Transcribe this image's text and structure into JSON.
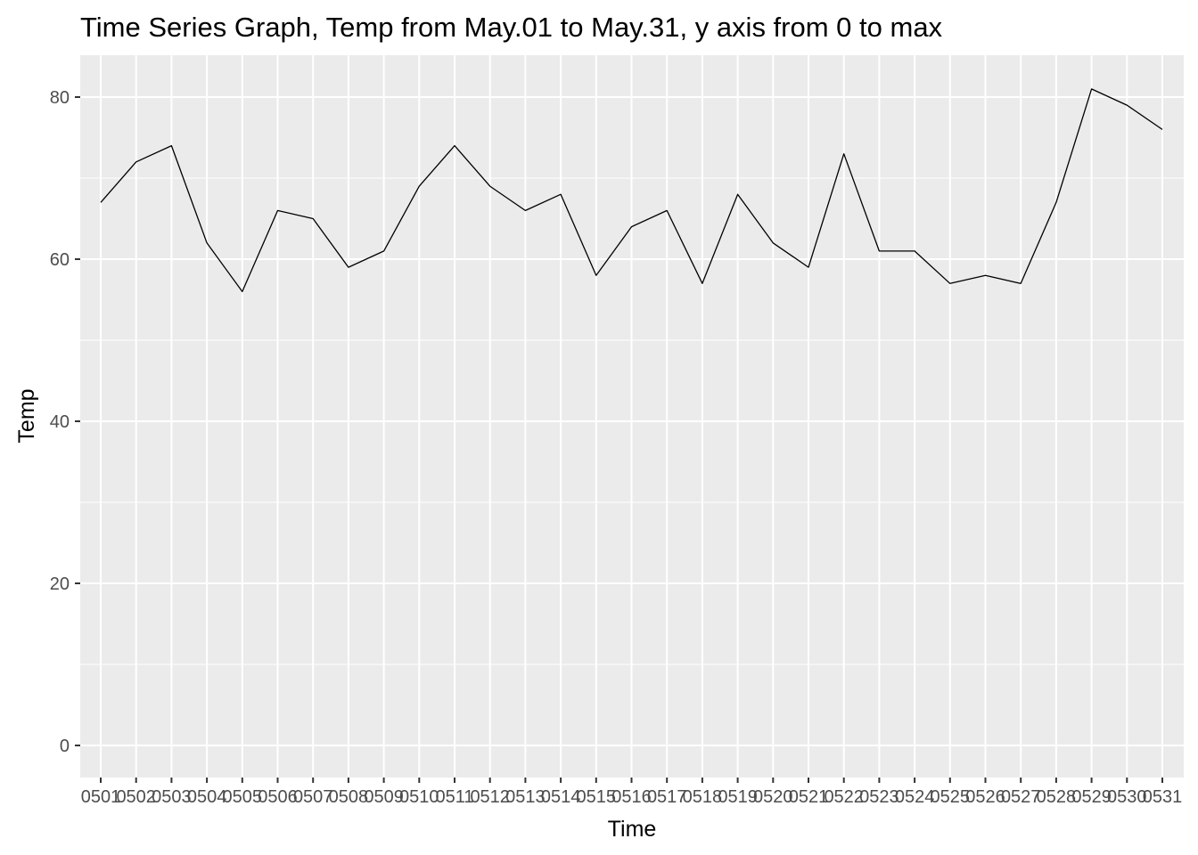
{
  "chart_data": {
    "type": "line",
    "title": "Time Series Graph, Temp from May.01 to May.31, y axis from 0 to max",
    "xlabel": "Time",
    "ylabel": "Temp",
    "categories": [
      "0501",
      "0502",
      "0503",
      "0504",
      "0505",
      "0506",
      "0507",
      "0508",
      "0509",
      "0510",
      "0511",
      "0512",
      "0513",
      "0514",
      "0515",
      "0516",
      "0517",
      "0518",
      "0519",
      "0520",
      "0521",
      "0522",
      "0523",
      "0524",
      "0525",
      "0526",
      "0527",
      "0528",
      "0529",
      "0530",
      "0531"
    ],
    "values": [
      67,
      72,
      74,
      62,
      56,
      66,
      65,
      59,
      61,
      69,
      74,
      69,
      66,
      68,
      58,
      64,
      66,
      57,
      68,
      62,
      59,
      73,
      61,
      61,
      57,
      58,
      57,
      67,
      81,
      79,
      76
    ],
    "ylim": [
      0,
      81
    ],
    "yticks": [
      0,
      20,
      40,
      60,
      80
    ],
    "grid": true,
    "legend": "none",
    "colors": {
      "panel_background": "#ebebeb",
      "grid_line": "#ffffff",
      "line": "#000000",
      "tick_label": "#4d4d4d",
      "tick_mark": "#333333",
      "text": "#000000"
    }
  }
}
